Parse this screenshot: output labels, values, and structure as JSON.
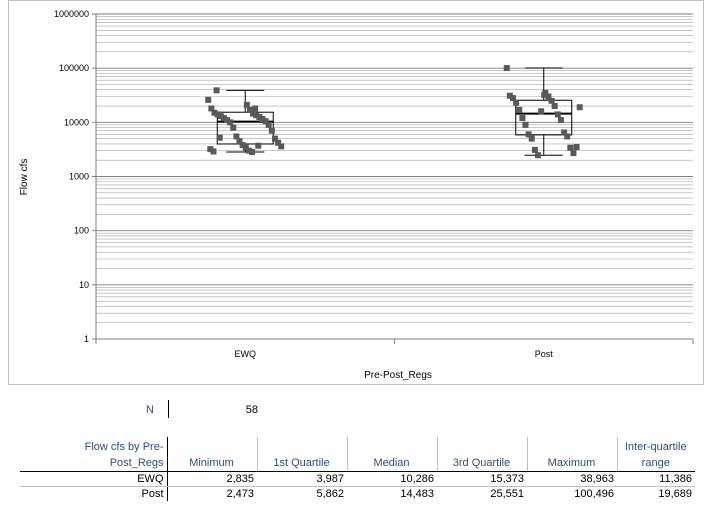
{
  "chart_data": {
    "type": "box",
    "yscale": "log",
    "ylim": [
      1,
      1000000
    ],
    "y_ticks": [
      "1",
      "10",
      "100",
      "1000",
      "10000",
      "100000",
      "1000000"
    ],
    "ylabel": "Flow cfs",
    "xlabel": "Pre-Post_Regs",
    "categories": [
      "EWQ",
      "Post"
    ],
    "grid": true,
    "marker_color": "#595959",
    "boxes": [
      {
        "name": "EWQ",
        "min": 2835,
        "q1": 3987,
        "median": 10286,
        "q3": 15373,
        "max": 38963
      },
      {
        "name": "Post",
        "min": 2473,
        "q1": 5862,
        "median": 14483,
        "q3": 25551,
        "max": 100496
      }
    ],
    "points": [
      {
        "category": "EWQ",
        "values": [
          26000,
          21000,
          18000,
          17000,
          15000,
          14500,
          14000,
          13500,
          13000,
          12500,
          12000,
          11500,
          11000,
          10500,
          10000,
          9000,
          8000,
          7000,
          5500,
          5000,
          4500,
          4200,
          3800,
          3600,
          3400,
          3200,
          3000,
          2900,
          2835,
          38963,
          18000,
          5200,
          3700
        ]
      },
      {
        "category": "Post",
        "values": [
          100496,
          35000,
          31000,
          30000,
          28000,
          25000,
          23000,
          20000,
          17000,
          14000,
          12000,
          11000,
          9000,
          6500,
          6000,
          5500,
          5000,
          3400,
          3100,
          2700,
          2473,
          3500,
          16000,
          19000,
          32000
        ]
      }
    ]
  },
  "summary": {
    "n_label": "N",
    "n_value": "58"
  },
  "table": {
    "headers": {
      "group_line1": "Flow cfs by Pre-",
      "group_line2": "Post_Regs",
      "minimum": "Minimum",
      "q1": "1st Quartile",
      "median": "Median",
      "q3": "3rd Quartile",
      "maximum": "Maximum",
      "iqr_line1": "Inter-quartile",
      "iqr_line2": "range"
    },
    "rows": [
      {
        "label": "EWQ",
        "minimum": "2,835",
        "q1": "3,987",
        "median": "10,286",
        "q3": "15,373",
        "maximum": "38,963",
        "iqr": "11,386"
      },
      {
        "label": "Post",
        "minimum": "2,473",
        "q1": "5,862",
        "median": "14,483",
        "q3": "25,551",
        "maximum": "100,496",
        "iqr": "19,689"
      }
    ]
  }
}
